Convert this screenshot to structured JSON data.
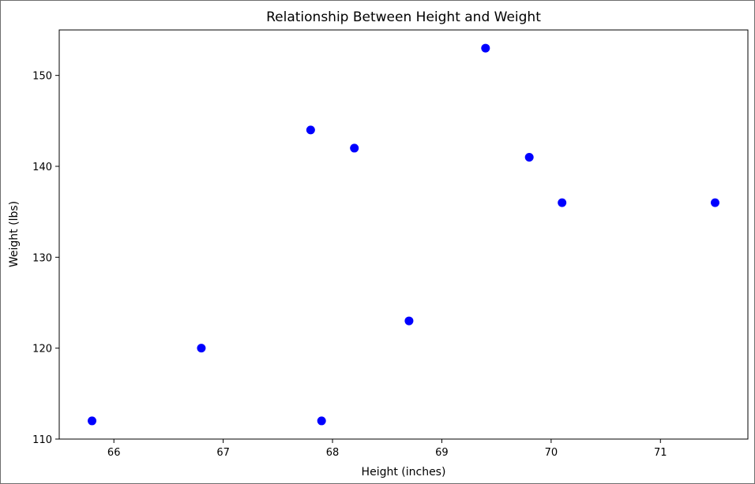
{
  "chart_data": {
    "type": "scatter",
    "title": "Relationship Between Height and Weight",
    "xlabel": "Height (inches)",
    "ylabel": "Weight (lbs)",
    "xlim": [
      65.5,
      71.8
    ],
    "ylim": [
      110,
      155
    ],
    "xticks": [
      66,
      67,
      68,
      69,
      70,
      71
    ],
    "yticks": [
      110,
      120,
      130,
      140,
      150
    ],
    "grid": false,
    "marker_color": "#0000ff",
    "points": [
      {
        "x": 65.8,
        "y": 112
      },
      {
        "x": 66.8,
        "y": 120
      },
      {
        "x": 67.8,
        "y": 144
      },
      {
        "x": 67.9,
        "y": 112
      },
      {
        "x": 68.2,
        "y": 142
      },
      {
        "x": 68.7,
        "y": 123
      },
      {
        "x": 69.4,
        "y": 153
      },
      {
        "x": 69.8,
        "y": 141
      },
      {
        "x": 70.1,
        "y": 136
      },
      {
        "x": 71.5,
        "y": 136
      }
    ]
  }
}
